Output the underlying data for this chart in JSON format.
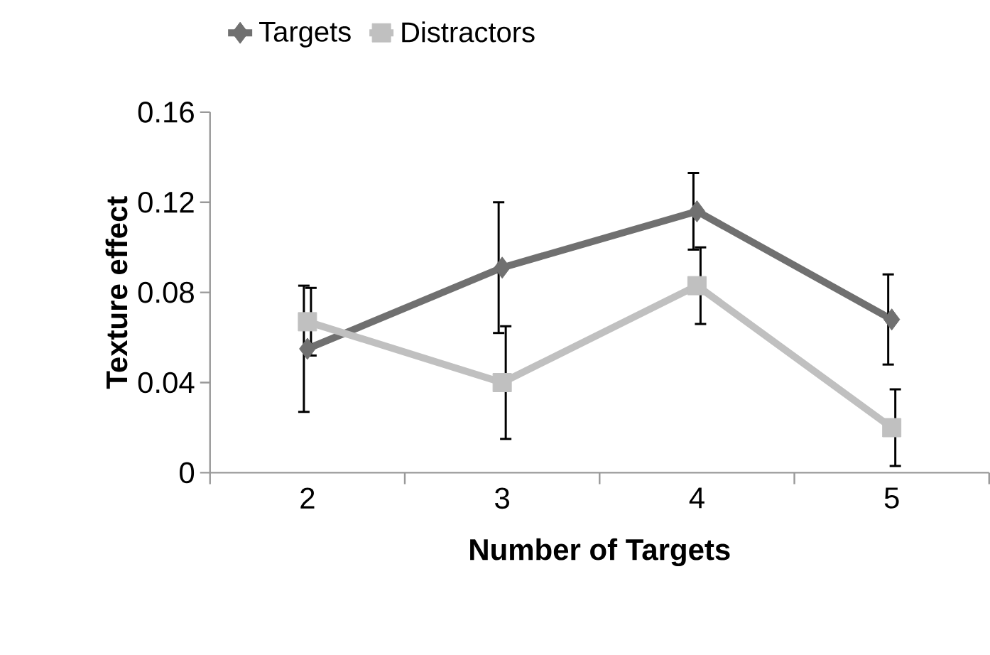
{
  "chart_data": {
    "type": "line",
    "xlabel": "Number of Targets",
    "ylabel": "Texture effect",
    "categories": [
      "2",
      "3",
      "4",
      "5"
    ],
    "series": [
      {
        "name": "Targets",
        "color": "#707070",
        "marker": "diamond",
        "values": [
          0.055,
          0.091,
          0.116,
          0.068
        ],
        "errors": [
          0.028,
          0.029,
          0.017,
          0.02
        ]
      },
      {
        "name": "Distractors",
        "color": "#c0c0c0",
        "marker": "square",
        "values": [
          0.067,
          0.04,
          0.083,
          0.02
        ],
        "errors": [
          0.015,
          0.025,
          0.017,
          0.017
        ]
      }
    ],
    "ylim": [
      0,
      0.16
    ],
    "yticks": [
      0,
      0.04,
      0.08,
      0.12,
      0.16
    ],
    "grid": false,
    "legend": "top"
  }
}
